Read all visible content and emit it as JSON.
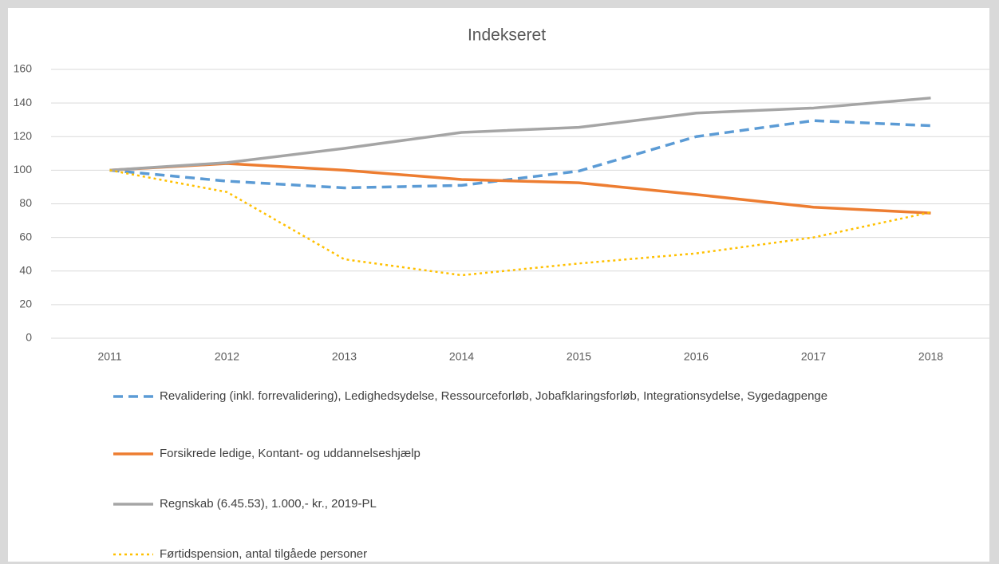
{
  "chart_data": {
    "type": "line",
    "title": "Indekseret",
    "categories": [
      "2011",
      "2012",
      "2013",
      "2014",
      "2015",
      "2016",
      "2017",
      "2018"
    ],
    "series": [
      {
        "name": "Revalidering (inkl. forrevalidering), Ledighedsydelse, Ressourceforløb, Jobafklaringsforløb, Integrationsydelse, Sygedagpenge",
        "color": "#5b9bd5",
        "dash": "dashed",
        "values": [
          100,
          93.5,
          89.5,
          91,
          99.5,
          120,
          129.5,
          126.5
        ]
      },
      {
        "name": "Forsikrede ledige, Kontant- og uddannelseshjælp",
        "color": "#ed7d31",
        "dash": "solid",
        "values": [
          100,
          104,
          100,
          94.5,
          92.5,
          85.5,
          78,
          74.5
        ]
      },
      {
        "name": "Regnskab (6.45.53), 1.000,- kr., 2019-PL",
        "color": "#a5a5a5",
        "dash": "solid",
        "values": [
          100,
          104.5,
          113,
          122.5,
          125.5,
          134,
          137,
          143
        ]
      },
      {
        "name": "Førtidspension, antal tilgåede personer",
        "color": "#ffc000",
        "dash": "dotted",
        "values": [
          100,
          87,
          47,
          37.5,
          44.5,
          50.5,
          60,
          75
        ]
      }
    ],
    "ylim": [
      0,
      160
    ],
    "yticks": [
      0,
      20,
      40,
      60,
      80,
      100,
      120,
      140,
      160
    ],
    "grid": true,
    "legend": "bottom"
  }
}
